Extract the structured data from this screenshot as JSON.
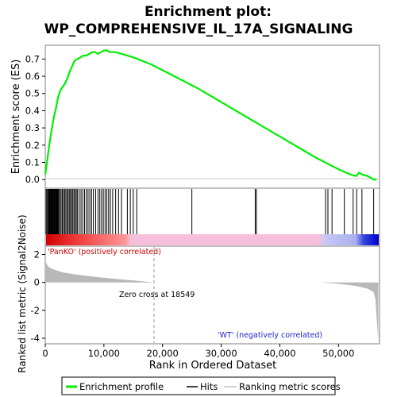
{
  "title": {
    "line1": "Enrichment plot:",
    "line2": "WP_COMPREHENSIVE_IL_17A_SIGNALING"
  },
  "colors": {
    "profile": "#00ee00",
    "hits": "#000000",
    "metric_fill": "#b8b8b8",
    "pos_label": "#cc0000",
    "neg_label": "#2222cc",
    "frame": "#808080",
    "zero_line": "#c8c8c8"
  },
  "chart_data": [
    {
      "type": "line",
      "panel": "enrichment",
      "ylabel": "Enrichment score (ES)",
      "xlim": [
        0,
        57000
      ],
      "ylim": [
        -0.05,
        0.78
      ],
      "y_ticks": [
        "0.0",
        "0.1",
        "0.2",
        "0.3",
        "0.4",
        "0.5",
        "0.6",
        "0.7"
      ],
      "grid": false,
      "series": [
        {
          "name": "Enrichment profile",
          "x": [
            0,
            300,
            600,
            1000,
            1400,
            1800,
            2200,
            2600,
            3000,
            3400,
            3800,
            4200,
            4600,
            5000,
            5500,
            6000,
            6500,
            7000,
            7500,
            8000,
            8500,
            9000,
            9500,
            10000,
            10500,
            11000,
            12000,
            13000,
            15000,
            18000,
            22000,
            26000,
            30000,
            34000,
            38000,
            42000,
            46000,
            50000,
            52000,
            53000,
            53500,
            54000,
            55000,
            56000,
            56500
          ],
          "y": [
            0.03,
            0.1,
            0.18,
            0.27,
            0.35,
            0.41,
            0.48,
            0.52,
            0.54,
            0.56,
            0.59,
            0.63,
            0.66,
            0.69,
            0.7,
            0.71,
            0.72,
            0.72,
            0.73,
            0.74,
            0.74,
            0.73,
            0.74,
            0.75,
            0.75,
            0.74,
            0.74,
            0.73,
            0.71,
            0.67,
            0.6,
            0.53,
            0.45,
            0.37,
            0.29,
            0.21,
            0.13,
            0.06,
            0.03,
            0.02,
            0.04,
            0.03,
            0.02,
            0.0,
            0.0
          ]
        }
      ]
    },
    {
      "type": "scatter",
      "panel": "hits",
      "hit_ranks": [
        150,
        300,
        450,
        600,
        700,
        800,
        900,
        1000,
        1100,
        1200,
        1300,
        1400,
        1500,
        1600,
        1700,
        1800,
        1900,
        2000,
        2100,
        2200,
        2300,
        2500,
        2700,
        2900,
        3100,
        3300,
        3500,
        3700,
        3900,
        4100,
        4300,
        4500,
        4700,
        4900,
        5100,
        5300,
        5500,
        5800,
        6100,
        6400,
        6700,
        7000,
        7300,
        7600,
        7900,
        8200,
        8600,
        9000,
        9300,
        9600,
        9900,
        10200,
        10500,
        10800,
        11100,
        11500,
        12000,
        12500,
        13000,
        14000,
        14500,
        15000,
        15600,
        25000,
        35800,
        36000,
        47800,
        48200,
        48900,
        51000,
        52500,
        53100,
        54000,
        56000
      ]
    },
    {
      "type": "area",
      "panel": "ranked_metric",
      "ylabel": "Ranked list metric (Signal2Noise)",
      "xlabel": "Rank in Ordered Dataset",
      "xlim": [
        0,
        57000
      ],
      "ylim": [
        -4.4,
        2.6
      ],
      "x_ticks": [
        "0",
        "10,000",
        "20,000",
        "30,000",
        "40,000",
        "50,000"
      ],
      "y_ticks": [
        "-4",
        "-2",
        "0",
        "2"
      ],
      "x": [
        0,
        200,
        500,
        1000,
        2000,
        3000,
        5000,
        8000,
        12000,
        16000,
        18549,
        47000,
        50000,
        53000,
        55000,
        56000,
        56300,
        56500,
        56800
      ],
      "values": [
        1.7,
        1.35,
        1.15,
        1.0,
        0.85,
        0.72,
        0.58,
        0.42,
        0.25,
        0.1,
        0.0,
        0.0,
        -0.1,
        -0.25,
        -0.45,
        -0.7,
        -1.2,
        -2.5,
        -4.2
      ],
      "zero_cross_label": "Zero cross at 18549",
      "zero_cross_x": 18549,
      "pos_label": "'PanKO' (positively correlated)",
      "neg_label": "'WT' (negatively correlated)"
    }
  ],
  "legend": {
    "items": [
      {
        "label": "Enrichment profile",
        "color": "#00ee00"
      },
      {
        "label": "Hits",
        "color": "#000000"
      },
      {
        "label": "Ranking metric scores",
        "color": "#d0d0d0"
      }
    ]
  }
}
